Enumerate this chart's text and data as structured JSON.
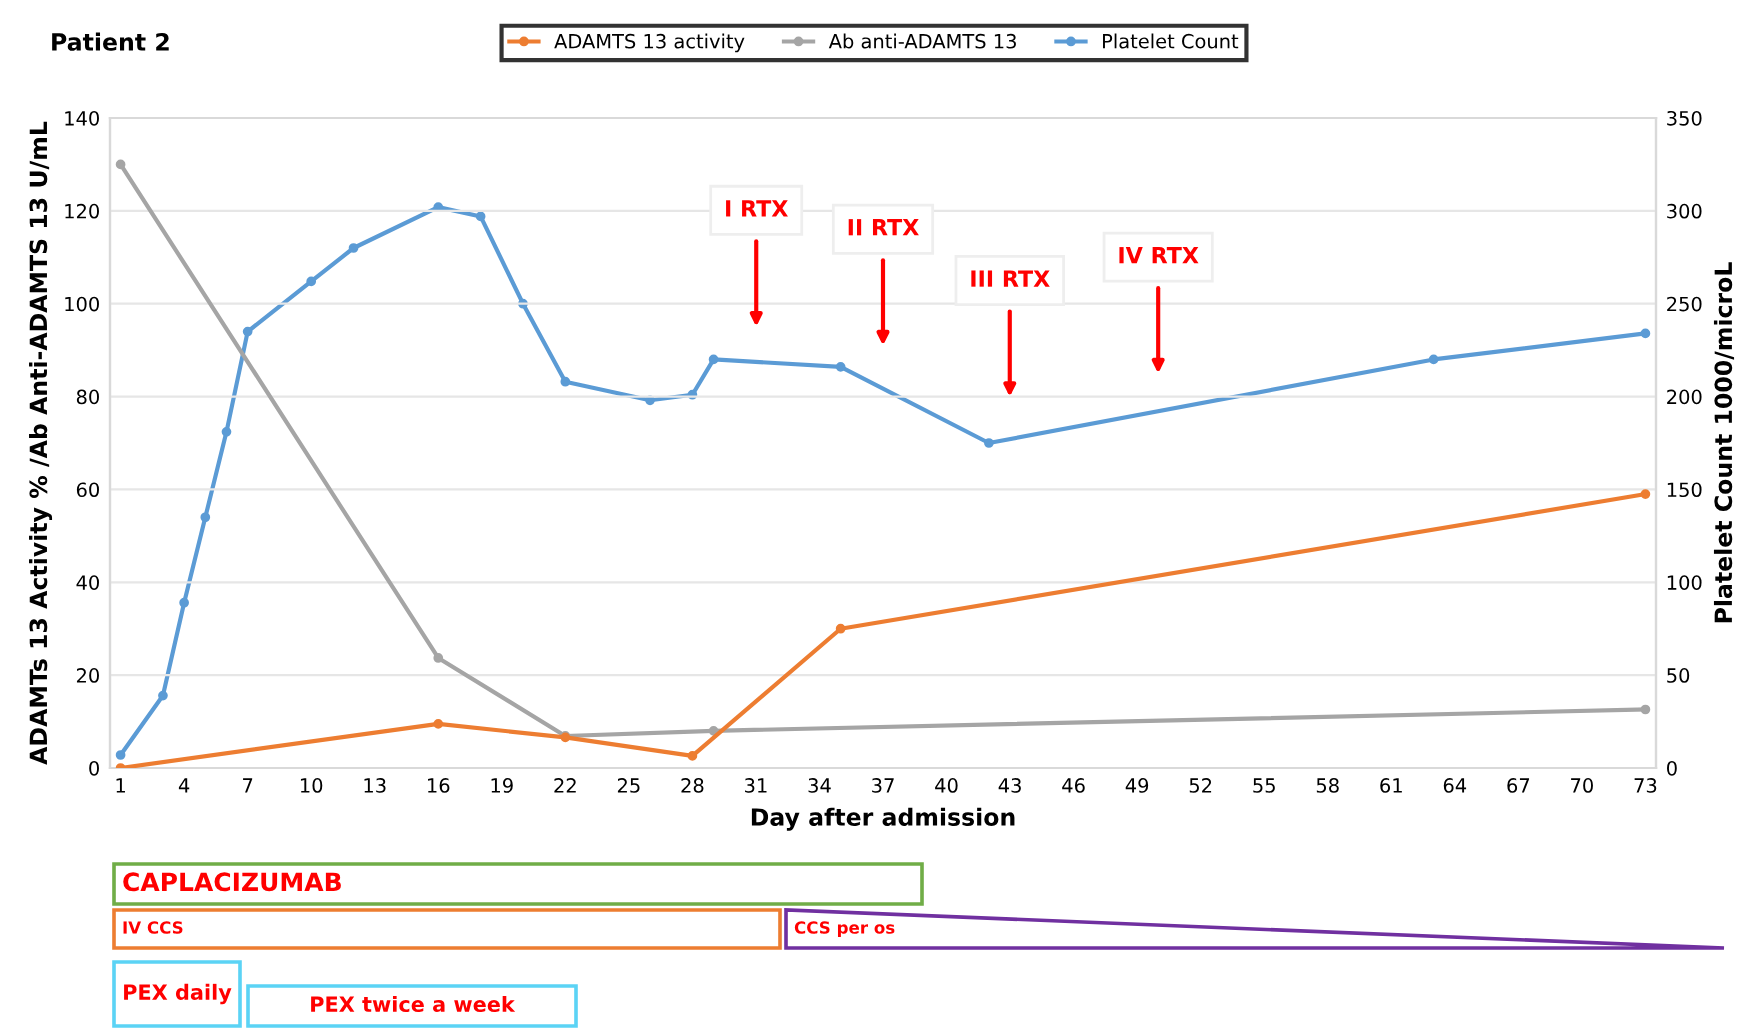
{
  "chart_data": {
    "type": "line",
    "title": "Patient 2",
    "xlabel": "Day after admission",
    "ylabel": "ADAMTs 13 Activity % /Ab Anti-ADAMTS 13 U/mL",
    "y2label": "Platelet Count 1000/microL",
    "series": [
      {
        "name": "ADAMTS 13 activity",
        "color": "#ed7d31",
        "x": [
          1,
          16,
          22,
          28,
          35,
          73
        ],
        "values": [
          0,
          9.5,
          6.6,
          2.6,
          30,
          59
        ]
      },
      {
        "name": "Ab anti-ADAMTS 13",
        "color": "#a5a5a5",
        "x": [
          1,
          16,
          22,
          29,
          73
        ],
        "values": [
          130,
          23.7,
          6.9,
          8,
          12.6
        ]
      },
      {
        "name": "Platelet Count",
        "color": "#5b9bd5",
        "axis": "y2",
        "x": [
          1,
          3,
          4,
          5,
          6,
          7,
          10,
          12,
          16,
          18,
          20,
          22,
          26,
          28,
          29,
          35,
          42,
          63,
          73
        ],
        "values": [
          7,
          39,
          89,
          135,
          181,
          235,
          262,
          280,
          302,
          297,
          250,
          208,
          198,
          201,
          220,
          216,
          175,
          220,
          234
        ]
      }
    ],
    "xlim": [
      0.5,
      73.5
    ],
    "xticks": [
      1,
      4,
      7,
      10,
      13,
      16,
      19,
      22,
      25,
      28,
      31,
      34,
      37,
      40,
      43,
      46,
      49,
      52,
      55,
      58,
      61,
      64,
      67,
      70,
      73
    ],
    "ylim": [
      0,
      140
    ],
    "yticks": [
      0,
      20,
      40,
      60,
      80,
      100,
      120,
      140
    ],
    "y2lim": [
      0,
      350
    ],
    "y2ticks": [
      0,
      50,
      100,
      150,
      200,
      250,
      300,
      350
    ],
    "grid": "y",
    "legend": "top",
    "marker": "circle",
    "line_style": "solid",
    "annotations": [
      "I RTX",
      "II RTX",
      "III RTX",
      "IV RTX",
      "CAPLACIZUMAB",
      "IV CCS",
      "CCS per os",
      "PEX daily",
      "PEX twice a week"
    ]
  }
}
